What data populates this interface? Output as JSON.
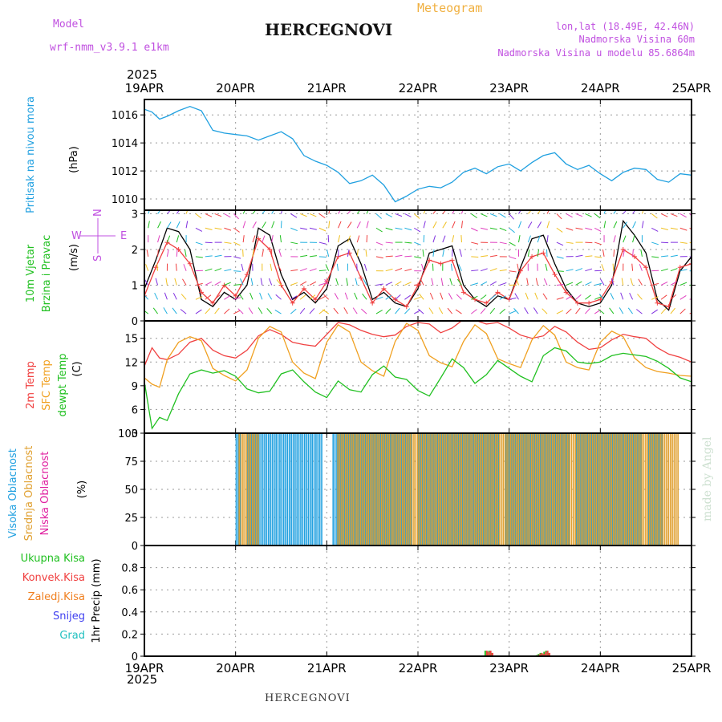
{
  "header": {
    "model_label": "Model",
    "model_name": "wrf-nmm_v3.9.1 e1km",
    "title": "HERCEGNOVI",
    "subtitle": "Meteogram",
    "lonlat": "lon,lat (18.49E, 42.46N)",
    "elevation": "Nadmorska Visina 60m",
    "model_elevation": "Nadmorska Visina u modelu 85.6864m"
  },
  "year_label": "2025",
  "date_labels": [
    "19APR",
    "20APR",
    "21APR",
    "22APR",
    "23APR",
    "24APR",
    "25APR"
  ],
  "footer": "HERCEGNOVI",
  "watermark": "made by Angel",
  "compass": {
    "n": "N",
    "s": "S",
    "e": "E",
    "w": "W"
  },
  "panels": {
    "pressure": {
      "label": "Pritisak na nivou mora",
      "unit": "(hPa)",
      "color": "#20a0e0"
    },
    "wind": {
      "label1": "10m Vjetar",
      "label2": "Brzina i Pravac",
      "unit": "(m/s)",
      "color": "#20c020"
    },
    "temp": {
      "labels": [
        {
          "text": "2m Temp",
          "color": "#f04040"
        },
        {
          "text": "SFC Temp",
          "color": "#f0a020"
        },
        {
          "text": "dewpt Temp",
          "color": "#20c020"
        }
      ],
      "unit": "(C)"
    },
    "cloud": {
      "labels": [
        {
          "text": "Visoka Oblacnost",
          "color": "#20a0e0"
        },
        {
          "text": "Srednja Oblacnost",
          "color": "#e0a030"
        },
        {
          "text": "Niska Oblacnost",
          "color": "#e020a0"
        }
      ],
      "unit": "(%)"
    },
    "precip": {
      "unit": "1hr Precip (mm)",
      "legend": [
        {
          "text": "Ukupna Kisa",
          "color": "#20c020"
        },
        {
          "text": "Konvek.Kisa",
          "color": "#f04040"
        },
        {
          "text": "Zaledj.Kisa",
          "color": "#f08020"
        },
        {
          "text": "Snijeg",
          "color": "#4040f0"
        },
        {
          "text": "Grad",
          "color": "#20c0c0"
        }
      ]
    }
  },
  "chart_data": [
    {
      "type": "line",
      "title": "Pritisak na nivou mora",
      "ylabel": "(hPa)",
      "ylim": [
        1009.2,
        1017.1
      ],
      "yticks": [
        1010,
        1012,
        1014,
        1016
      ],
      "xlim": [
        0,
        144
      ],
      "x_unit": "hours since 2025-04-19 00",
      "series": [
        {
          "name": "Pritisak na nivou mora",
          "color": "#20a0e0",
          "x": [
            0,
            2,
            4,
            6,
            9,
            12,
            15,
            18,
            21,
            24,
            27,
            30,
            33,
            36,
            39,
            42,
            45,
            48,
            51,
            54,
            57,
            60,
            63,
            66,
            69,
            72,
            75,
            78,
            81,
            84,
            87,
            90,
            93,
            96,
            99,
            102,
            105,
            108,
            111,
            114,
            117,
            120,
            123,
            126,
            129,
            132,
            135,
            138,
            141,
            144
          ],
          "y": [
            1016.4,
            1016.2,
            1015.7,
            1015.9,
            1016.3,
            1016.6,
            1016.3,
            1014.9,
            1014.7,
            1014.6,
            1014.5,
            1014.2,
            1014.5,
            1014.8,
            1014.3,
            1013.1,
            1012.7,
            1012.4,
            1011.9,
            1011.1,
            1011.3,
            1011.7,
            1011.0,
            1009.8,
            1010.2,
            1010.7,
            1010.9,
            1010.8,
            1011.2,
            1011.9,
            1012.2,
            1011.8,
            1012.3,
            1012.5,
            1012.0,
            1012.6,
            1013.1,
            1013.3,
            1012.5,
            1012.1,
            1012.4,
            1011.8,
            1011.3,
            1011.9,
            1012.2,
            1012.1,
            1011.4,
            1011.2,
            1011.8,
            1011.7
          ]
        }
      ]
    },
    {
      "type": "line",
      "title": "10m Vjetar Brzina i Pravac",
      "ylabel": "(m/s)",
      "ylim": [
        0,
        3.1
      ],
      "yticks": [
        0,
        1,
        2,
        3
      ],
      "xlim": [
        0,
        144
      ],
      "series": [
        {
          "name": "speed",
          "color": "#000000",
          "x": [
            0,
            3,
            6,
            9,
            12,
            15,
            18,
            21,
            24,
            27,
            30,
            33,
            36,
            39,
            42,
            45,
            48,
            51,
            54,
            57,
            60,
            63,
            66,
            69,
            72,
            75,
            78,
            81,
            84,
            87,
            90,
            93,
            96,
            99,
            102,
            105,
            108,
            111,
            114,
            117,
            120,
            123,
            126,
            129,
            132,
            135,
            138,
            141,
            144
          ],
          "y": [
            0.9,
            1.7,
            2.6,
            2.5,
            2.0,
            0.6,
            0.4,
            0.8,
            0.6,
            1.0,
            2.6,
            2.4,
            1.3,
            0.6,
            0.8,
            0.5,
            0.9,
            2.1,
            2.3,
            1.6,
            0.6,
            0.8,
            0.5,
            0.4,
            0.9,
            1.9,
            2.0,
            2.1,
            1.0,
            0.6,
            0.4,
            0.7,
            0.6,
            1.5,
            2.3,
            2.4,
            1.6,
            0.9,
            0.5,
            0.4,
            0.5,
            1.0,
            2.8,
            2.4,
            1.9,
            0.6,
            0.3,
            1.4,
            1.8
          ]
        },
        {
          "name": "gust",
          "color": "#f04040",
          "x": [
            0,
            3,
            6,
            9,
            12,
            15,
            18,
            21,
            24,
            27,
            30,
            33,
            36,
            39,
            42,
            45,
            48,
            51,
            54,
            57,
            60,
            63,
            66,
            69,
            72,
            75,
            78,
            81,
            84,
            87,
            90,
            93,
            96,
            99,
            102,
            105,
            108,
            111,
            114,
            117,
            120,
            123,
            126,
            129,
            132,
            135,
            138,
            141,
            144
          ],
          "y": [
            0.7,
            1.5,
            2.2,
            2.0,
            1.6,
            0.8,
            0.5,
            1.0,
            0.7,
            1.3,
            2.3,
            2.0,
            1.0,
            0.5,
            0.9,
            0.6,
            1.1,
            1.8,
            1.9,
            1.2,
            0.5,
            0.9,
            0.6,
            0.4,
            1.0,
            1.7,
            1.6,
            1.7,
            0.8,
            0.6,
            0.5,
            0.8,
            0.6,
            1.4,
            1.8,
            1.9,
            1.3,
            0.8,
            0.5,
            0.5,
            0.6,
            1.1,
            2.0,
            1.8,
            1.5,
            0.5,
            0.4,
            1.5,
            1.6
          ]
        }
      ]
    },
    {
      "type": "line",
      "title": "2m Temp, SFC Temp, dewpt Temp",
      "ylabel": "(C)",
      "ylim": [
        3,
        17.2
      ],
      "yticks": [
        3,
        6,
        9,
        12,
        15
      ],
      "xlim": [
        0,
        144
      ],
      "series": [
        {
          "name": "2m Temp",
          "color": "#f04040",
          "x": [
            0,
            2,
            4,
            6,
            9,
            12,
            15,
            18,
            21,
            24,
            27,
            30,
            33,
            36,
            39,
            42,
            45,
            48,
            51,
            54,
            57,
            60,
            63,
            66,
            69,
            72,
            75,
            78,
            81,
            84,
            87,
            90,
            93,
            96,
            99,
            102,
            105,
            108,
            111,
            114,
            117,
            120,
            123,
            126,
            129,
            132,
            135,
            138,
            141,
            144
          ],
          "y": [
            11.5,
            13.8,
            12.5,
            12.3,
            13.0,
            14.5,
            15.0,
            13.5,
            12.8,
            12.5,
            13.5,
            15.3,
            16.1,
            15.5,
            14.5,
            14.2,
            14.0,
            15.5,
            17.0,
            16.7,
            16.0,
            15.5,
            15.2,
            15.4,
            16.5,
            17.0,
            16.8,
            15.7,
            16.3,
            17.4,
            17.3,
            16.8,
            17.0,
            16.3,
            15.4,
            15.0,
            15.3,
            16.5,
            15.8,
            14.5,
            13.6,
            13.8,
            14.8,
            15.5,
            15.2,
            15.0,
            13.8,
            13.0,
            12.6,
            12.0
          ]
        },
        {
          "name": "SFC Temp",
          "color": "#f0a020",
          "x": [
            0,
            2,
            4,
            6,
            9,
            12,
            15,
            18,
            21,
            24,
            27,
            30,
            33,
            36,
            39,
            42,
            45,
            48,
            51,
            54,
            57,
            60,
            63,
            66,
            69,
            72,
            75,
            78,
            81,
            84,
            87,
            90,
            93,
            96,
            99,
            102,
            105,
            108,
            111,
            114,
            117,
            120,
            123,
            126,
            129,
            132,
            135,
            138,
            141,
            144
          ],
          "y": [
            10.0,
            9.2,
            8.8,
            12.3,
            14.5,
            15.2,
            14.7,
            11.2,
            10.3,
            9.6,
            11.0,
            15.0,
            16.5,
            15.8,
            12.0,
            10.6,
            9.9,
            14.5,
            16.7,
            15.8,
            12.0,
            10.9,
            10.2,
            14.6,
            16.9,
            16.0,
            12.8,
            11.9,
            11.4,
            14.6,
            16.7,
            15.6,
            12.4,
            11.8,
            11.3,
            14.8,
            16.6,
            15.4,
            12.0,
            11.3,
            11.0,
            14.5,
            15.9,
            15.2,
            12.5,
            11.3,
            10.8,
            10.6,
            10.3,
            10.2
          ]
        },
        {
          "name": "dewpt Temp",
          "color": "#20c020",
          "x": [
            0,
            2,
            4,
            6,
            9,
            12,
            15,
            18,
            21,
            24,
            27,
            30,
            33,
            36,
            39,
            42,
            45,
            48,
            51,
            54,
            57,
            60,
            63,
            66,
            69,
            72,
            75,
            78,
            81,
            84,
            87,
            90,
            93,
            96,
            99,
            102,
            105,
            108,
            111,
            114,
            117,
            120,
            123,
            126,
            129,
            132,
            135,
            138,
            141,
            144
          ],
          "y": [
            9.5,
            3.6,
            5.0,
            4.6,
            8.0,
            10.5,
            11.0,
            10.6,
            10.9,
            10.2,
            8.6,
            8.1,
            8.3,
            10.5,
            11.0,
            9.5,
            8.2,
            7.5,
            9.6,
            8.5,
            8.2,
            10.4,
            11.5,
            10.1,
            9.8,
            8.4,
            7.7,
            10.0,
            12.4,
            11.3,
            9.3,
            10.4,
            12.2,
            11.2,
            10.2,
            9.5,
            12.8,
            13.8,
            13.4,
            12.0,
            11.8,
            12.0,
            12.8,
            13.1,
            12.9,
            12.7,
            12.1,
            11.2,
            10.0,
            9.5
          ]
        }
      ]
    },
    {
      "type": "bar",
      "title": "Visoka Oblacnost, Srednja Oblacnost, Niska Oblacnost",
      "ylabel": "(%)",
      "ylim": [
        0,
        100
      ],
      "yticks": [
        0,
        25,
        50,
        75,
        100
      ],
      "xlim": [
        0,
        144
      ],
      "x_step_hours": 0.5,
      "series": [
        {
          "name": "Visoka Oblacnost",
          "color": "#20a0e0",
          "x_range": [
            24,
            136
          ],
          "value": 100,
          "gaps": [
            [
              25.5,
              26.5
            ],
            [
              47,
              49
            ],
            [
              70.5,
              71.5
            ],
            [
              93.5,
              94.5
            ],
            [
              112,
              113
            ],
            [
              131,
              132
            ]
          ]
        },
        {
          "name": "Srednja Oblacnost",
          "color": "#e0a030",
          "x_range": [
            24.5,
            140
          ],
          "value": 100,
          "gaps": [
            [
              30,
              50
            ]
          ]
        },
        {
          "name": "Niska Oblacnost",
          "color": "#e020a0",
          "x_range": [
            0,
            144
          ],
          "value": 0
        }
      ]
    },
    {
      "type": "bar",
      "title": "1hr Precip",
      "ylabel": "(mm)",
      "ylim": [
        0,
        1.0
      ],
      "yticks": [
        0,
        0.2,
        0.4,
        0.6,
        0.8
      ],
      "xlim": [
        0,
        144
      ],
      "series": [
        {
          "name": "Ukupna Kisa",
          "color": "#20c020",
          "x": [
            89.5,
            90.0,
            90.5,
            91.0,
            103.0,
            103.5,
            104.0,
            104.5,
            105.0,
            105.5,
            106.0
          ],
          "values": [
            0.05,
            0.04,
            0.05,
            0.03,
            0.01,
            0.02,
            0.03,
            0.02,
            0.04,
            0.05,
            0.03
          ]
        },
        {
          "name": "Konvek.Kisa",
          "color": "#f04040",
          "x": [
            89.5,
            90.0,
            90.5,
            91.0,
            103.0,
            103.5,
            104.0,
            104.5,
            105.0,
            105.5,
            106.0
          ],
          "values": [
            0.05,
            0.04,
            0.05,
            0.03,
            0.01,
            0.02,
            0.03,
            0.02,
            0.04,
            0.05,
            0.03
          ]
        }
      ]
    }
  ]
}
